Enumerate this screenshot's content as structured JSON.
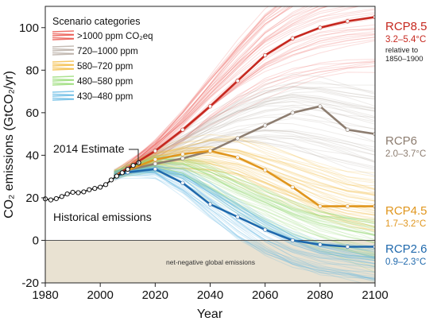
{
  "chart_data": {
    "type": "line",
    "xlabel": "Year",
    "ylabel": "CO₂ emissions (GtCO₂/yr)",
    "xlim": [
      1980,
      2100
    ],
    "ylim": [
      -20,
      110
    ],
    "x_ticks": [
      1980,
      2000,
      2020,
      2040,
      2060,
      2080,
      2100
    ],
    "y_ticks": [
      -20,
      0,
      20,
      40,
      60,
      80,
      100
    ],
    "legend": {
      "title": "Scenario categories",
      "position": "top-left",
      "items": [
        {
          "label": ">1000 ppm CO₂eq",
          "color": "#e8453c"
        },
        {
          "label": "720–1000 ppm",
          "color": "#b3a79e"
        },
        {
          "label": "580–720 ppm",
          "color": "#f2b533"
        },
        {
          "label": "480–580 ppm",
          "color": "#8fd86a"
        },
        {
          "label": "430–480 ppm",
          "color": "#5ab4e2"
        }
      ]
    },
    "historical": {
      "label": "Historical emissions",
      "x": [
        1980,
        1982,
        1984,
        1986,
        1988,
        1990,
        1992,
        1994,
        1996,
        1998,
        2000,
        2002,
        2004,
        2006,
        2008,
        2010,
        2012,
        2014
      ],
      "y": [
        19.5,
        19.0,
        19.6,
        20.6,
        21.8,
        22.6,
        22.4,
        22.8,
        23.8,
        24.4,
        25.0,
        26.2,
        28.4,
        30.2,
        31.8,
        33.4,
        35.2,
        36.5
      ]
    },
    "estimate_2014": {
      "label": "2014 Estimate",
      "x": 2014,
      "y": 36.5
    },
    "negative_region": {
      "label": "net-negative global emissions",
      "y_range": [
        -20,
        0
      ]
    },
    "series": [
      {
        "name": "RCP8.5",
        "range": "3.2–5.4°C",
        "note": [
          "relative to",
          "1850–1900"
        ],
        "color": "#c6281f",
        "x": [
          2005,
          2010,
          2020,
          2030,
          2040,
          2050,
          2060,
          2070,
          2080,
          2090,
          2100
        ],
        "y": [
          30,
          34,
          42,
          52,
          63,
          75,
          87,
          95,
          100,
          103,
          105
        ]
      },
      {
        "name": "RCP6",
        "range": "2.0–3.7°C",
        "color": "#8d7d70",
        "x": [
          2005,
          2010,
          2020,
          2030,
          2040,
          2050,
          2060,
          2070,
          2080,
          2090,
          2100
        ],
        "y": [
          30,
          33,
          36,
          38.5,
          42,
          48,
          54,
          60,
          63,
          52,
          50
        ]
      },
      {
        "name": "RCP4.5",
        "range": "1.7–3.2°C",
        "color": "#e0961e",
        "x": [
          2005,
          2010,
          2020,
          2030,
          2040,
          2050,
          2060,
          2070,
          2080,
          2090,
          2100
        ],
        "y": [
          30,
          33,
          38,
          40.5,
          42,
          39,
          33,
          25,
          16,
          16,
          16
        ]
      },
      {
        "name": "RCP2.6",
        "range": "0.9–2.3°C",
        "color": "#1f69ad",
        "x": [
          2005,
          2010,
          2020,
          2030,
          2040,
          2050,
          2060,
          2070,
          2080,
          2090,
          2100
        ],
        "y": [
          30,
          32,
          33.5,
          27,
          17,
          11,
          5,
          0,
          -2,
          -3,
          -3
        ]
      }
    ]
  }
}
